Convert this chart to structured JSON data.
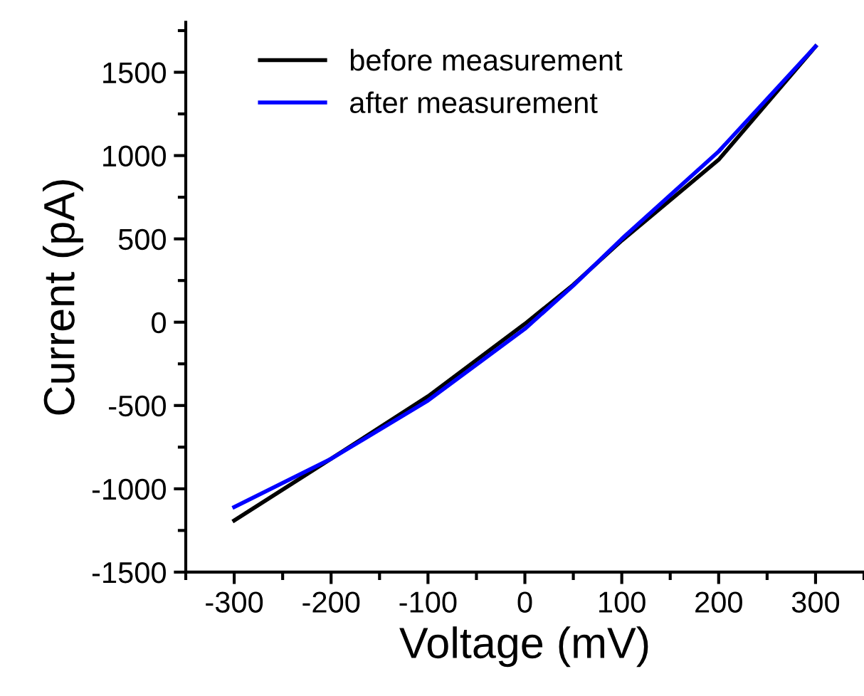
{
  "chart_data": {
    "type": "line",
    "xlabel": "Voltage (mV)",
    "ylabel": "Current (pA)",
    "xlim": [
      -350,
      350
    ],
    "xticks": [
      -300,
      -200,
      -100,
      0,
      100,
      200,
      300
    ],
    "ylim": [
      -1500,
      1800
    ],
    "yticks": [
      -1500,
      -1000,
      -500,
      0,
      500,
      1000,
      1500
    ],
    "grid": false,
    "legend": "top left",
    "marker": "none",
    "line_style": "solid",
    "series": [
      {
        "name": "before measurement",
        "color": "#000000",
        "x": [
          -300,
          -200,
          -100,
          0,
          50,
          100,
          200,
          300
        ],
        "values": [
          -1190,
          -820,
          -445,
          -10,
          225,
          490,
          975,
          1655
        ]
      },
      {
        "name": "after measurement",
        "color": "#0000ff",
        "x": [
          -300,
          -200,
          -100,
          0,
          50,
          100,
          200,
          300
        ],
        "values": [
          -1110,
          -820,
          -470,
          -40,
          220,
          500,
          1025,
          1655
        ]
      }
    ]
  }
}
